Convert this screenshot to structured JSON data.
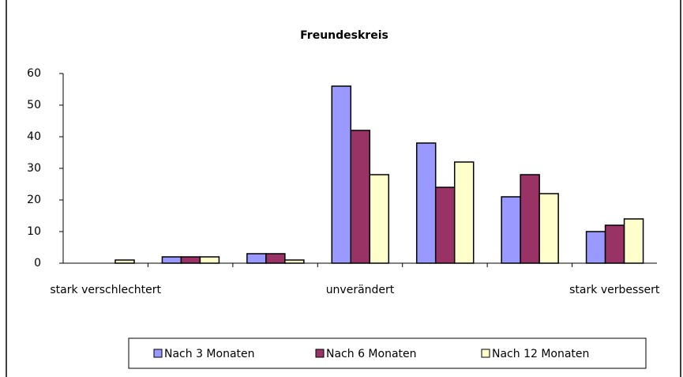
{
  "chart_data": {
    "type": "bar",
    "title": "Freundeskreis",
    "categories": [
      "stark verschlechtert",
      null,
      null,
      "unverändert",
      null,
      null,
      "stark verbessert"
    ],
    "series": [
      {
        "name": "Nach 3 Monaten",
        "color": "#9999ff",
        "values": [
          0,
          2,
          3,
          56,
          38,
          21,
          10
        ]
      },
      {
        "name": "Nach 6 Monaten",
        "color": "#993366",
        "values": [
          0,
          2,
          3,
          42,
          24,
          28,
          12
        ]
      },
      {
        "name": "Nach 12 Monaten",
        "color": "#ffffcc",
        "values": [
          1,
          2,
          1,
          28,
          32,
          22,
          14
        ]
      }
    ],
    "ylim": [
      0,
      60
    ],
    "yticks": [
      0,
      10,
      20,
      30,
      40,
      50,
      60
    ],
    "grid": false,
    "legend": "bottom"
  }
}
